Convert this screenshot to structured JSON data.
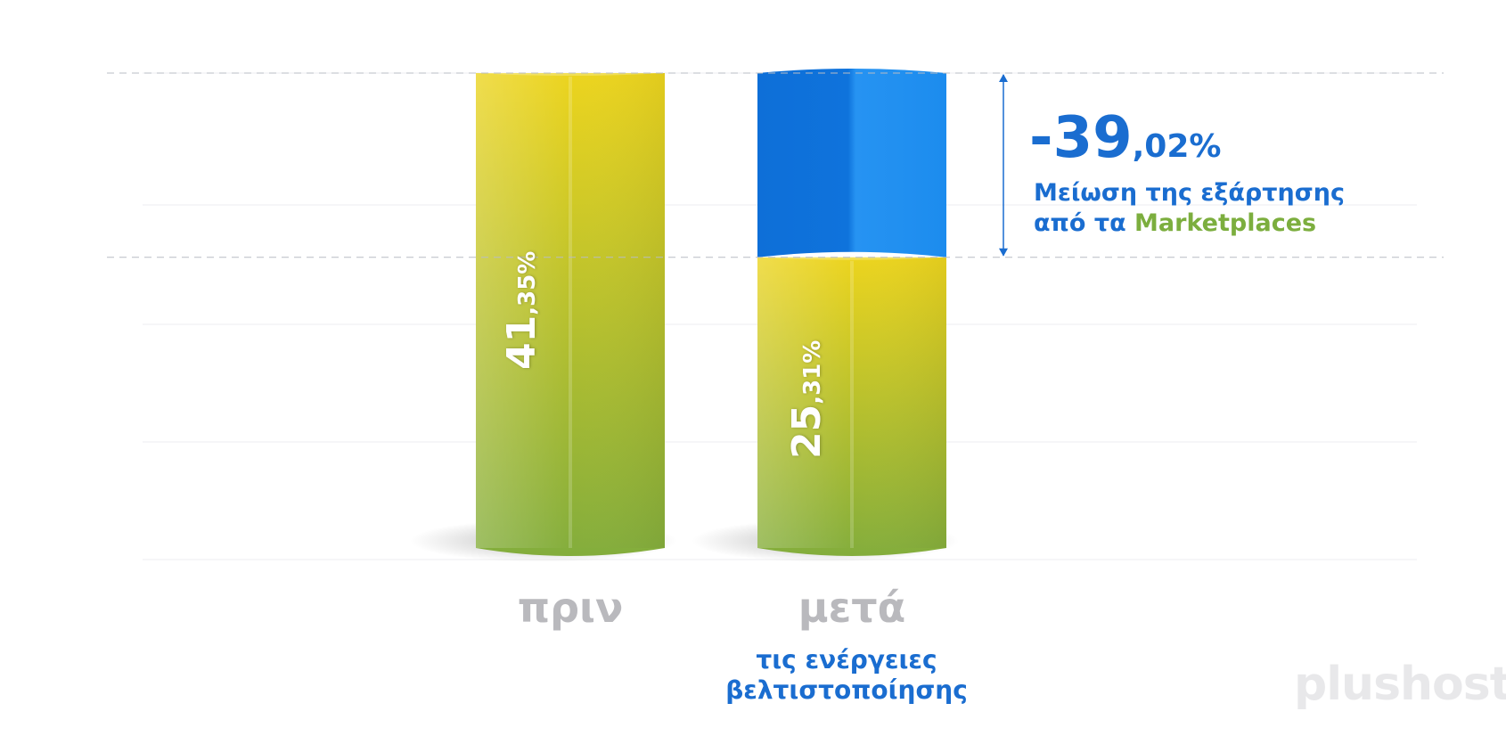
{
  "chart_data": {
    "type": "bar",
    "categories": [
      "πριν",
      "μετά"
    ],
    "values": [
      41.35,
      25.31
    ],
    "value_labels": [
      {
        "int": "41",
        "dec": ",35%"
      },
      {
        "int": "25",
        "dec": ",31%"
      }
    ],
    "subtitle_after": [
      "τις ενέργειες",
      "βελτιστοποίησης"
    ],
    "annotation": {
      "value": -39.02,
      "int": "-39",
      "dec": ",02%",
      "line1": "Μείωση της εξάρτησης",
      "line2_prefix": "από τα ",
      "line2_highlight": "Marketplaces"
    },
    "ylim": [
      0,
      41.35
    ],
    "grid": true
  },
  "colors": {
    "bar_top": "#ecd41e",
    "bar_bottom": "#83ad3c",
    "reduction": "#1a84e4",
    "accent_text": "#1a6dd0",
    "highlight": "#7cae3e",
    "category_text": "#b9b9bd"
  },
  "logo": {
    "text": "plushost"
  }
}
